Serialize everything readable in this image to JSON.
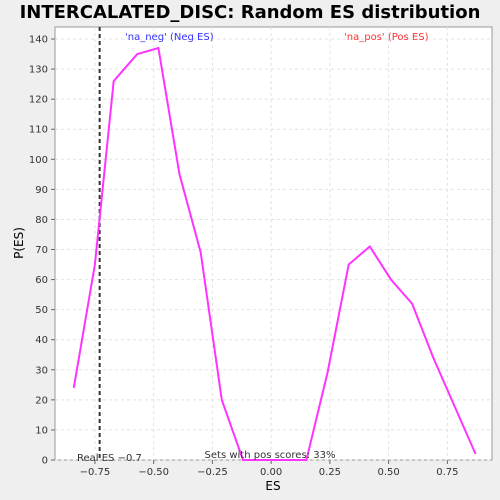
{
  "chart_data": {
    "type": "line",
    "title": "INTERCALATED_DISC: Random ES distribution",
    "xlabel": "ES",
    "ylabel": "P(ES)",
    "xlim": [
      -0.92,
      0.94
    ],
    "ylim": [
      0,
      144
    ],
    "xticks": [
      -0.75,
      -0.5,
      -0.25,
      0.0,
      0.25,
      0.5,
      0.75
    ],
    "xtick_labels": [
      "−0.75",
      "−0.50",
      "−0.25",
      "0.00",
      "0.25",
      "0.50",
      "0.75"
    ],
    "yticks": [
      0,
      10,
      20,
      30,
      40,
      50,
      60,
      70,
      80,
      90,
      100,
      110,
      120,
      130,
      140
    ],
    "grid": true,
    "series": [
      {
        "color": "#ff33ff",
        "x": [
          -0.84,
          -0.75,
          -0.67,
          -0.57,
          -0.48,
          -0.39,
          -0.3,
          -0.21,
          -0.12,
          -0.03,
          0.06,
          0.15,
          0.24,
          0.33,
          0.42,
          0.51,
          0.6,
          0.69,
          0.78,
          0.87
        ],
        "y": [
          24,
          65,
          126,
          135,
          137,
          95,
          69,
          20,
          0,
          0,
          0,
          0,
          29,
          65,
          71,
          60,
          52,
          34,
          18,
          2
        ]
      }
    ],
    "annotations": {
      "neg_label": "'na_neg' (Neg ES)",
      "pos_label": "'na_pos' (Pos ES)",
      "real_es_label": "Real ES −0.7",
      "pos_scores_label": "Sets with pos scores: 33%"
    },
    "real_es_x": -0.73,
    "colors": {
      "neg": "#3333ff",
      "pos": "#ff3333",
      "line": "#ff33ff"
    }
  }
}
